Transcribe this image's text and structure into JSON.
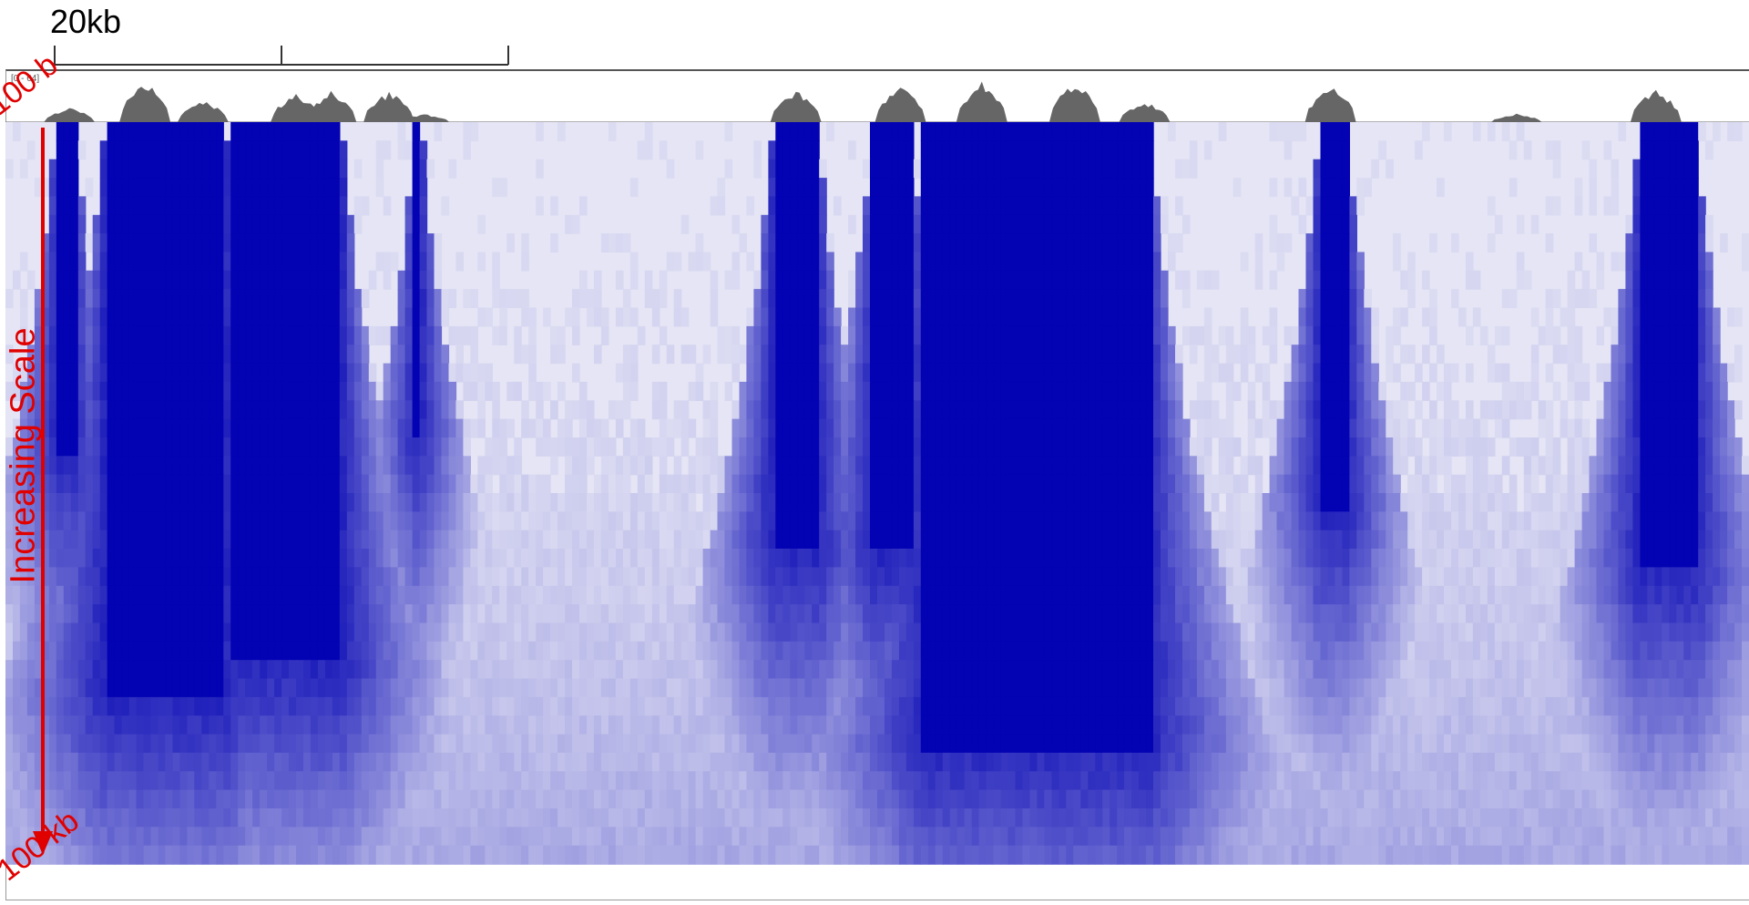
{
  "scale": {
    "label": "20kb"
  },
  "track": {
    "range_label": "[0 - 64]"
  },
  "axis": {
    "top_label": "100 b",
    "bottom_label": "100 kb",
    "title": "Increasing Scale"
  },
  "colors": {
    "heat_max": "#0303b3",
    "heat_min": "#eeeef8",
    "coverage": "#666666",
    "annotation": "#e00000"
  },
  "chart_data": {
    "type": "heatmap",
    "x_range_kb": [
      0,
      150
    ],
    "y_scale": {
      "from": "100 b",
      "to": "100 kb"
    },
    "dense_intervals_kb": [
      {
        "start_kb": 4.3,
        "end_kb": 6.0,
        "max_scale_fraction": 0.45
      },
      {
        "start_kb": 8.5,
        "end_kb": 19.0,
        "max_scale_fraction": 0.78
      },
      {
        "start_kb": 19.5,
        "end_kb": 29.0,
        "max_scale_fraction": 0.73
      },
      {
        "start_kb": 35.2,
        "end_kb": 35.8,
        "max_scale_fraction": 0.42
      },
      {
        "start_kb": 66.0,
        "end_kb": 70.0,
        "max_scale_fraction": 0.58
      },
      {
        "start_kb": 74.5,
        "end_kb": 78.0,
        "max_scale_fraction": 0.58
      },
      {
        "start_kb": 79.0,
        "end_kb": 98.5,
        "max_scale_fraction": 0.84
      },
      {
        "start_kb": 113.0,
        "end_kb": 115.5,
        "max_scale_fraction": 0.52
      },
      {
        "start_kb": 140.5,
        "end_kb": 145.5,
        "max_scale_fraction": 0.6
      }
    ],
    "coverage_peaks_kb": [
      {
        "center_kb": 5.5,
        "height": 0.35
      },
      {
        "center_kb": 12,
        "height": 1.0
      },
      {
        "center_kb": 17,
        "height": 0.55
      },
      {
        "center_kb": 25,
        "height": 0.7
      },
      {
        "center_kb": 28,
        "height": 0.75
      },
      {
        "center_kb": 33,
        "height": 0.75
      },
      {
        "center_kb": 36,
        "height": 0.2
      },
      {
        "center_kb": 68,
        "height": 0.8
      },
      {
        "center_kb": 77,
        "height": 0.9
      },
      {
        "center_kb": 84,
        "height": 1.0
      },
      {
        "center_kb": 92,
        "height": 1.0
      },
      {
        "center_kb": 98,
        "height": 0.5
      },
      {
        "center_kb": 114,
        "height": 0.9
      },
      {
        "center_kb": 130,
        "height": 0.2
      },
      {
        "center_kb": 142,
        "height": 0.8
      }
    ]
  }
}
